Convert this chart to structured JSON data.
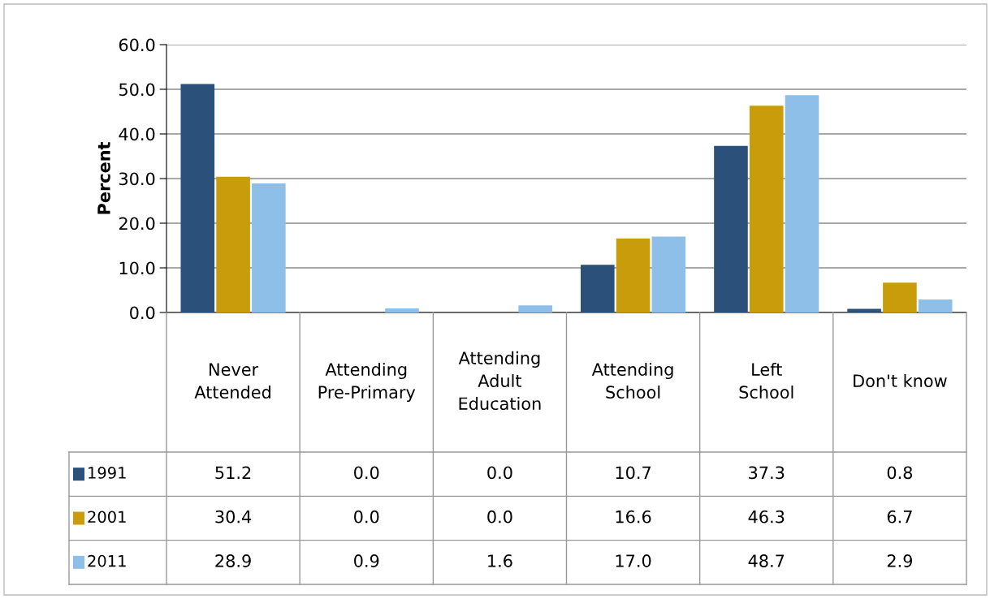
{
  "chart_data": {
    "type": "bar",
    "ylabel": "Percent",
    "categories": [
      "Never Attended",
      "Attending Pre-Primary",
      "Attending Adult Education",
      "Attending School",
      "Left School",
      "Don't know"
    ],
    "series": [
      {
        "name": "1991",
        "color": "#2b5079",
        "values": [
          51.2,
          0.0,
          0.0,
          10.7,
          37.3,
          0.8
        ],
        "value_labels": [
          "51.2",
          "0.0",
          "0.0",
          "10.7",
          "37.3",
          "0.8"
        ]
      },
      {
        "name": "2001",
        "color": "#c99c0c",
        "values": [
          30.4,
          0.0,
          0.0,
          16.6,
          46.3,
          6.7
        ],
        "value_labels": [
          "30.4",
          "0.0",
          "0.0",
          "16.6",
          "46.3",
          "6.7"
        ]
      },
      {
        "name": "2011",
        "color": "#8ebfe8",
        "values": [
          28.9,
          0.9,
          1.6,
          17.0,
          48.7,
          2.9
        ],
        "value_labels": [
          "28.9",
          "0.9",
          "1.6",
          "17.0",
          "48.7",
          "2.9"
        ]
      }
    ],
    "ylim": [
      0,
      60
    ],
    "yticks": [
      {
        "value": 0,
        "label": "0.0"
      },
      {
        "value": 10,
        "label": "10.0"
      },
      {
        "value": 20,
        "label": "20.0"
      },
      {
        "value": 30,
        "label": "30.0"
      },
      {
        "value": 40,
        "label": "40.0"
      },
      {
        "value": 50,
        "label": "50.0"
      },
      {
        "value": 60,
        "label": "60.0"
      }
    ],
    "grid": "y",
    "legend": "left"
  }
}
